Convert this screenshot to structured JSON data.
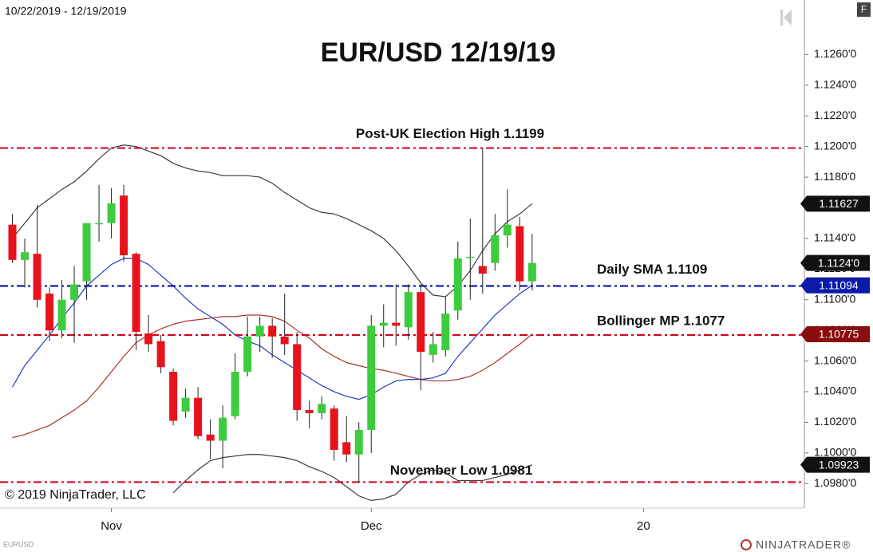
{
  "chart_data": {
    "type": "candlestick",
    "title": "EUR/USD 12/19/19",
    "date_range": "10/22/2019 - 12/19/2019",
    "copyright": "© 2019 NinjaTrader, LLC",
    "symbol": "EURUSD",
    "brand": "NINJATRADER®",
    "button": "F",
    "x": [
      0,
      1,
      2,
      3,
      4,
      5,
      6,
      7,
      8,
      9,
      10,
      11,
      12,
      13,
      14,
      15,
      16,
      17,
      18,
      19,
      20,
      21,
      22,
      23,
      24,
      25,
      26,
      27,
      28,
      29,
      30,
      31,
      32,
      33,
      34,
      35,
      36,
      37,
      38,
      39,
      40,
      41,
      42
    ],
    "open": [
      1.1149,
      1.1126,
      1.113,
      1.1104,
      1.108,
      1.11,
      1.1112,
      1.115,
      1.115,
      1.1168,
      1.113,
      1.1078,
      1.1073,
      1.1053,
      1.1027,
      1.1036,
      1.1012,
      1.1008,
      1.1024,
      1.1053,
      1.1076,
      1.1083,
      1.1076,
      1.1071,
      1.1028,
      1.1026,
      1.1029,
      1.1007,
      1.0999,
      1.1015,
      1.1083,
      1.1085,
      1.1082,
      1.1105,
      1.1064,
      1.1067,
      1.1093,
      1.1128,
      1.1122,
      1.1124,
      1.1142,
      1.1148,
      1.1112
    ],
    "high": [
      1.1156,
      1.114,
      1.1162,
      1.1108,
      1.1113,
      1.1122,
      1.115,
      1.1175,
      1.1173,
      1.1175,
      1.1131,
      1.109,
      1.1077,
      1.1055,
      1.1042,
      1.1043,
      1.1022,
      1.1031,
      1.1065,
      1.1089,
      1.1089,
      1.1088,
      1.1104,
      1.1079,
      1.1034,
      1.1037,
      1.1031,
      1.1024,
      1.102,
      1.109,
      1.1097,
      1.111,
      1.111,
      1.111,
      1.1079,
      1.1102,
      1.1138,
      1.1153,
      1.1199,
      1.1156,
      1.1172,
      1.1154,
      1.1143
    ],
    "low": [
      1.1124,
      1.1108,
      1.1095,
      1.1073,
      1.1075,
      1.1072,
      1.11,
      1.1138,
      1.114,
      1.1125,
      1.1067,
      1.1066,
      1.1052,
      1.1018,
      1.1023,
      1.1009,
      1.0996,
      1.099,
      1.1022,
      1.105,
      1.1066,
      1.1062,
      1.1064,
      1.1021,
      1.1016,
      1.1022,
      1.0995,
      1.0994,
      1.0981,
      1.1,
      1.1069,
      1.107,
      1.1074,
      1.1041,
      1.1059,
      1.1063,
      1.1087,
      1.11,
      1.1104,
      1.1119,
      1.1134,
      1.1106,
      1.1106
    ],
    "close": [
      1.1126,
      1.1131,
      1.11,
      1.108,
      1.11,
      1.111,
      1.115,
      1.115,
      1.1163,
      1.1129,
      1.1079,
      1.1071,
      1.1056,
      1.1021,
      1.1036,
      1.1011,
      1.1008,
      1.1023,
      1.1053,
      1.1076,
      1.1083,
      1.1076,
      1.1071,
      1.1028,
      1.1026,
      1.1032,
      1.1002,
      1.0999,
      1.1015,
      1.1083,
      1.1085,
      1.1083,
      1.1105,
      1.1066,
      1.1071,
      1.1091,
      1.1127,
      1.1128,
      1.1117,
      1.1142,
      1.1149,
      1.1112,
      1.1124
    ],
    "last_close_label": "1.1124'0",
    "up_color": "#3dcc3d",
    "down_color": "#e8121c",
    "wick_color": "#222222",
    "close_tag_color": "#111111",
    "series": [
      {
        "color": "#3a3a3a",
        "tag_color": "#111111",
        "values": [
          1.114,
          1.115,
          1.116,
          1.1166,
          1.1172,
          1.1177,
          1.1184,
          1.1192,
          1.1199,
          1.1201,
          1.12,
          1.1197,
          1.1194,
          1.1189,
          1.1186,
          1.1184,
          1.1183,
          1.1181,
          1.1181,
          1.1181,
          1.118,
          1.1176,
          1.117,
          1.1165,
          1.116,
          1.1157,
          1.1156,
          1.1153,
          1.1149,
          1.1145,
          1.114,
          1.1132,
          1.1122,
          1.1111,
          1.1103,
          1.1102,
          1.1109,
          1.1119,
          1.1132,
          1.1143,
          1.1151,
          1.1156,
          1.11627
        ]
      },
      {
        "color": "#3a3a3a",
        "tag_color": "#111111",
        "values": [
          null,
          null,
          null,
          null,
          null,
          null,
          null,
          null,
          null,
          null,
          null,
          null,
          null,
          1.0974,
          1.0982,
          1.0989,
          1.0995,
          1.0997,
          1.0998,
          1.0999,
          1.0999,
          1.0998,
          1.0997,
          1.0995,
          1.0991,
          1.0988,
          1.0984,
          1.0978,
          1.0972,
          1.0969,
          1.097,
          1.0973,
          1.0981,
          1.0986,
          1.0989,
          1.0987,
          1.0982,
          1.0982,
          1.0982,
          1.0984,
          1.0986,
          1.0989,
          1.09923
        ]
      },
      {
        "color": "#a8342c",
        "tag_color": "#8a0c0c",
        "values": [
          1.101,
          1.1012,
          1.1015,
          1.1018,
          1.1023,
          1.1028,
          1.1034,
          1.1043,
          1.1053,
          1.1063,
          1.1072,
          1.1077,
          1.1081,
          1.1084,
          1.1086,
          1.1087,
          1.1088,
          1.1089,
          1.1089,
          1.109,
          1.109,
          1.1089,
          1.1086,
          1.108,
          1.1075,
          1.1068,
          1.1063,
          1.1059,
          1.1057,
          1.1055,
          1.1054,
          1.1052,
          1.105,
          1.1048,
          1.1047,
          1.1047,
          1.1048,
          1.105,
          1.1054,
          1.1059,
          1.1065,
          1.1071,
          1.10775
        ]
      },
      {
        "color": "#2238c8",
        "tag_color": "#0c1aa8",
        "values": [
          1.1043,
          1.1057,
          1.1067,
          1.1077,
          1.1088,
          1.1098,
          1.1109,
          1.1116,
          1.1123,
          1.1127,
          1.1127,
          1.1123,
          1.1116,
          1.1109,
          1.1101,
          1.1094,
          1.1089,
          1.1084,
          1.1077,
          1.1073,
          1.107,
          1.1064,
          1.1059,
          1.1054,
          1.1049,
          1.1044,
          1.104,
          1.1037,
          1.1035,
          1.1038,
          1.1043,
          1.1047,
          1.1048,
          1.1048,
          1.1049,
          1.1052,
          1.1063,
          1.1072,
          1.1081,
          1.109,
          1.1097,
          1.1104,
          1.11094
        ]
      }
    ],
    "levels": [
      {
        "label": "Post-UK Election High 1.1199",
        "value": 1.1199,
        "color": "#d4001a"
      },
      {
        "label": "Daily SMA 1.1109",
        "value": 1.1109,
        "color": "#0000a8"
      },
      {
        "label": "Bollinger MP 1.1077",
        "value": 1.1077,
        "color": "#d4001a"
      },
      {
        "label": "November Low 1.0981",
        "value": 1.0981,
        "color": "#d4001a"
      }
    ],
    "xlim": [
      -1,
      64
    ],
    "ylim": [
      1.0964,
      1.128
    ],
    "xticks": [
      {
        "value": 8,
        "label": "Nov"
      },
      {
        "value": 29,
        "label": "Dec"
      },
      {
        "value": 51,
        "label": "20"
      }
    ],
    "yticks": [
      {
        "value": 1.098,
        "label": "1.0980'0"
      },
      {
        "value": 1.1,
        "label": "1.1000'0"
      },
      {
        "value": 1.102,
        "label": "1.1020'0"
      },
      {
        "value": 1.104,
        "label": "1.1040'0"
      },
      {
        "value": 1.106,
        "label": "1.1060'0"
      },
      {
        "value": 1.108,
        "label": "1.1080'0"
      },
      {
        "value": 1.11,
        "label": "1.1100'0"
      },
      {
        "value": 1.112,
        "label": "1.1120'0"
      },
      {
        "value": 1.114,
        "label": "1.1140'0"
      },
      {
        "value": 1.116,
        "label": "1.1160'0"
      },
      {
        "value": 1.118,
        "label": "1.1180'0"
      },
      {
        "value": 1.12,
        "label": "1.1200'0"
      },
      {
        "value": 1.122,
        "label": "1.1220'0"
      },
      {
        "value": 1.124,
        "label": "1.1240'0"
      },
      {
        "value": 1.126,
        "label": "1.1260'0"
      }
    ]
  }
}
